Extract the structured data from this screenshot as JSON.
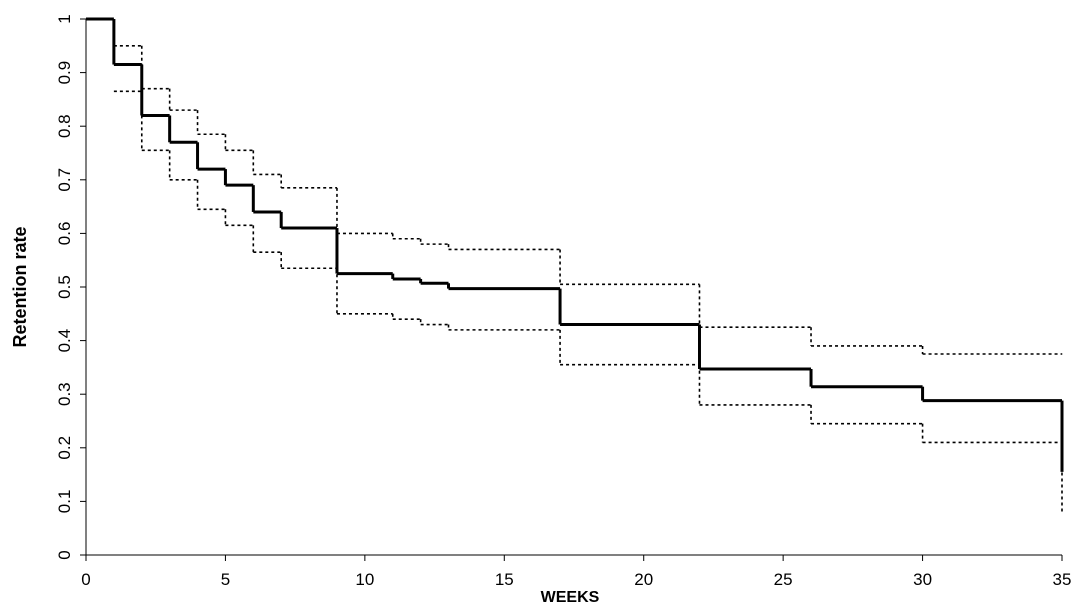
{
  "chart_data": {
    "type": "step",
    "xlabel": "WEEKS",
    "ylabel": "Retention rate",
    "xlim": [
      0,
      35
    ],
    "xticks": [
      0,
      5,
      10,
      15,
      20,
      25,
      30,
      35
    ],
    "ylim": [
      0,
      1
    ],
    "yticks": [
      0,
      0.1,
      0.2,
      0.3,
      0.4,
      0.5,
      0.6,
      0.7,
      0.8,
      0.9,
      1
    ],
    "grid": false,
    "series": [
      {
        "style": "solid",
        "color": "#000000",
        "x": [
          0,
          1,
          2,
          3,
          4,
          5,
          6,
          7,
          9,
          11,
          12,
          13,
          17,
          22,
          26,
          30,
          35
        ],
        "values": [
          1,
          0.915,
          0.82,
          0.77,
          0.72,
          0.69,
          0.64,
          0.61,
          0.525,
          0.515,
          0.507,
          0.497,
          0.43,
          0.347,
          0.314,
          0.288,
          0.155
        ]
      },
      {
        "style": "dotted",
        "color": "#000000",
        "x": [
          1,
          2,
          3,
          4,
          5,
          6,
          7,
          9,
          11,
          12,
          13,
          17,
          22,
          26,
          30,
          35
        ],
        "values": [
          0.95,
          0.87,
          0.83,
          0.785,
          0.755,
          0.71,
          0.685,
          0.6,
          0.59,
          0.58,
          0.57,
          0.505,
          0.425,
          0.39,
          0.375,
          0.375
        ]
      },
      {
        "style": "dotted",
        "color": "#000000",
        "x": [
          1,
          2,
          3,
          4,
          5,
          6,
          7,
          9,
          11,
          12,
          13,
          17,
          22,
          26,
          30,
          35
        ],
        "values": [
          0.865,
          0.755,
          0.7,
          0.645,
          0.615,
          0.565,
          0.535,
          0.45,
          0.44,
          0.43,
          0.42,
          0.355,
          0.28,
          0.245,
          0.21,
          0.08
        ]
      }
    ]
  }
}
